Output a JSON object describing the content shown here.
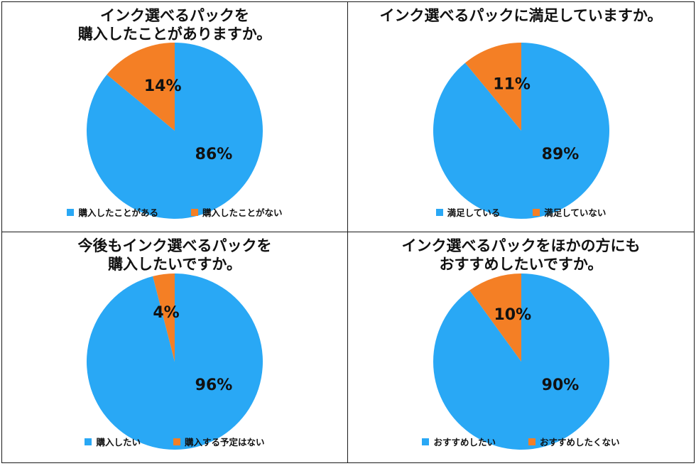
{
  "colors": {
    "yes": "#29a8f5",
    "no": "#f47f25"
  },
  "chart_data": [
    {
      "type": "pie",
      "title": "インク選べるパックを\n購入したことがありますか。",
      "labels": [
        "購入したことがある",
        "購入したことがない"
      ],
      "values": [
        86,
        14
      ],
      "value_labels": [
        "86%",
        "14%"
      ],
      "legend": "bottom"
    },
    {
      "type": "pie",
      "title": "インク選べるパックに満足していますか。",
      "labels": [
        "満足している",
        "満足していない"
      ],
      "values": [
        89,
        11
      ],
      "value_labels": [
        "89%",
        "11%"
      ],
      "legend": "bottom"
    },
    {
      "type": "pie",
      "title": "今後もインク選べるパックを\n購入したいですか。",
      "labels": [
        "購入したい",
        "購入する予定はない"
      ],
      "values": [
        96,
        4
      ],
      "value_labels": [
        "96%",
        "4%"
      ],
      "legend": "bottom"
    },
    {
      "type": "pie",
      "title": "インク選べるパックをほかの方にも\nおすすめしたいですか。",
      "labels": [
        "おすすめしたい",
        "おすすめしたくない"
      ],
      "values": [
        90,
        10
      ],
      "value_labels": [
        "90%",
        "10%"
      ],
      "legend": "bottom"
    }
  ]
}
